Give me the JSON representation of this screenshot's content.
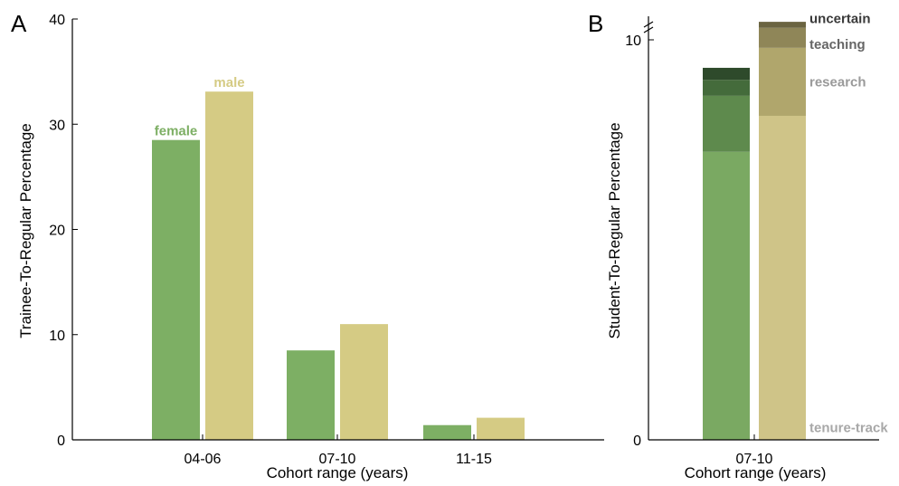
{
  "chart_data": [
    {
      "panel": "A",
      "type": "bar",
      "categories": [
        "04-06",
        "07-10",
        "11-15"
      ],
      "series": [
        {
          "name": "female",
          "values": [
            28.5,
            8.5,
            1.4
          ],
          "color": "#7daf64"
        },
        {
          "name": "male",
          "values": [
            33.1,
            11.0,
            2.1
          ],
          "color": "#d5cb84"
        }
      ],
      "xlabel": "Cohort range (years)",
      "ylabel": "Trainee-To-Regular Percentage",
      "ylim": [
        0,
        40
      ],
      "yticks": [
        0,
        10,
        20,
        30,
        40
      ]
    },
    {
      "panel": "B",
      "type": "bar",
      "stacked": true,
      "categories": [
        "07-10"
      ],
      "stack_layers": [
        {
          "name": "tenure-track",
          "values": [
            7.2,
            8.1
          ],
          "colors": [
            "#7aa962",
            "#cfc488"
          ]
        },
        {
          "name": "research",
          "values": [
            1.4,
            1.7
          ],
          "colors": [
            "#5e8a4d",
            "#b0a66c"
          ]
        },
        {
          "name": "teaching",
          "values": [
            0.4,
            0.5
          ],
          "colors": [
            "#446b3b",
            "#8f8658"
          ]
        },
        {
          "name": "uncertain",
          "values": [
            0.3,
            0.15
          ],
          "colors": [
            "#2e4a2b",
            "#6b6441"
          ]
        }
      ],
      "xlabel": "Cohort range (years)",
      "ylabel": "Student-To-Regular Percentage",
      "ylim": [
        0,
        10
      ],
      "yticks": [
        0,
        10
      ],
      "axis_break": true
    }
  ]
}
